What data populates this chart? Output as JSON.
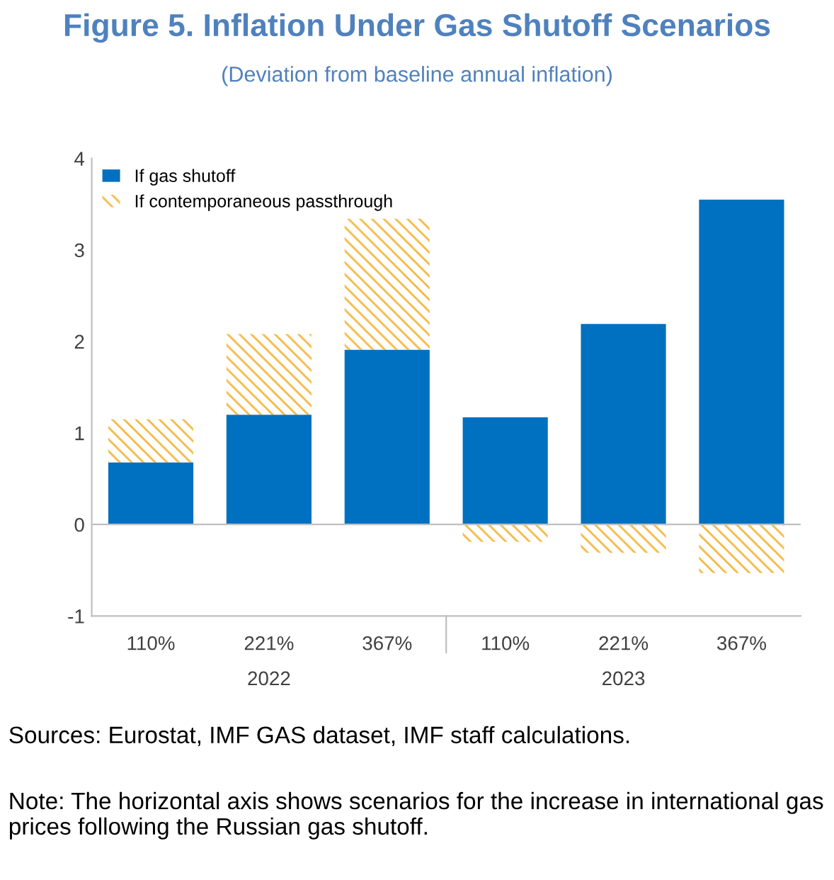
{
  "chart_data": {
    "type": "bar",
    "title": "Figure 5. Inflation Under Gas Shutoff Scenarios",
    "subtitle": "(Deviation from baseline annual inflation)",
    "categories": [
      "110%",
      "221%",
      "367%",
      "110%",
      "221%",
      "367%"
    ],
    "stacked": true,
    "series": [
      {
        "name": "If gas shutoff",
        "color": "#0070c0",
        "values": [
          0.68,
          1.2,
          1.91,
          1.17,
          2.19,
          3.55
        ]
      },
      {
        "name": "If contemporaneous passthrough",
        "color": "#f5b942",
        "values": [
          0.47,
          0.88,
          1.43,
          -0.19,
          -0.31,
          -0.53
        ]
      }
    ],
    "ref_lines": [
      {
        "axis": "y",
        "value": 0,
        "color": "#bfbfbf"
      }
    ],
    "ylim": [
      -1,
      4
    ],
    "yticks": [
      -1,
      0,
      1,
      2,
      3,
      4
    ],
    "grid": false,
    "legend": "top left",
    "annotations": [
      "2022",
      "2023",
      "Sources: Eurostat, IMF GAS dataset, IMF staff calculations.",
      "Note: The horizontal axis shows scenarios for the increase in international gas prices following the Russian gas shutoff."
    ]
  }
}
